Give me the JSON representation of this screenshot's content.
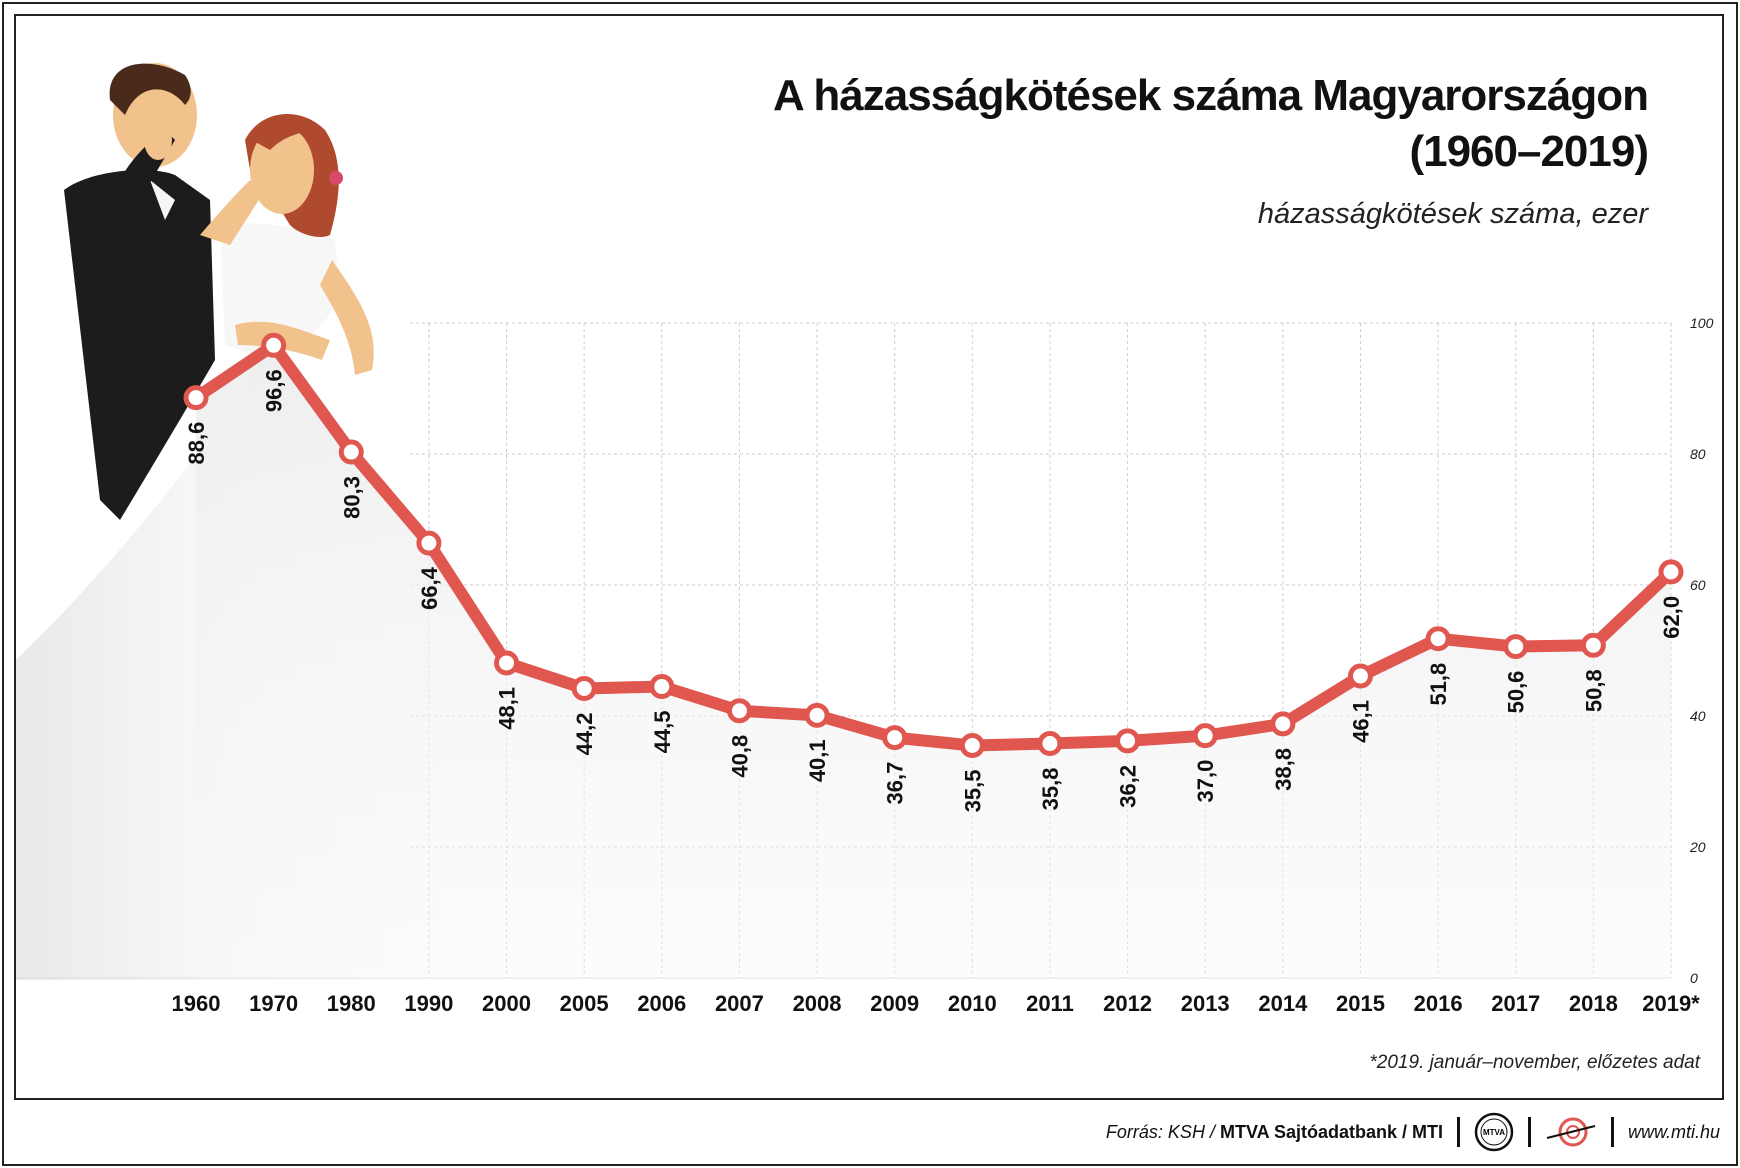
{
  "header": {
    "title_line1": "A házasságkötések száma Magyarországon",
    "title_line2": "(1960–2019)",
    "subtitle": "házasságkötések száma, ezer"
  },
  "footnote": "*2019. január–november, előzetes adat",
  "footer": {
    "source_prefix": "Forrás: KSH / ",
    "source_bold": "MTVA Sajtóadatbank / MTI",
    "website": "www.mti.hu",
    "mtva_logo_text": "MTVA"
  },
  "colors": {
    "line": "#e0574f",
    "marker_fill": "#ffffff",
    "grid": "#cccccc",
    "suit": "#1c1c1c",
    "skin": "#f2c28c",
    "hair_bride": "#b04a2e"
  },
  "decoration": {
    "image": "wedding-couple-illustration"
  },
  "chart_data": {
    "type": "line",
    "categories": [
      "1960",
      "1970",
      "1980",
      "1990",
      "2000",
      "2005",
      "2006",
      "2007",
      "2008",
      "2009",
      "2010",
      "2011",
      "2012",
      "2013",
      "2014",
      "2015",
      "2016",
      "2017",
      "2018",
      "2019*"
    ],
    "series": [
      {
        "values": [
          88.6,
          96.6,
          80.3,
          66.4,
          48.1,
          44.2,
          44.5,
          40.8,
          40.1,
          36.7,
          35.5,
          35.8,
          36.2,
          37.0,
          38.8,
          46.1,
          51.8,
          50.6,
          50.8,
          62.0
        ],
        "labels": [
          "88,6",
          "96,6",
          "80,3",
          "66,4",
          "48,1",
          "44,2",
          "44,5",
          "40,8",
          "40,1",
          "36,7",
          "35,5",
          "35,8",
          "36,2",
          "37,0",
          "38,8",
          "46,1",
          "51,8",
          "50,6",
          "50,8",
          "62,0"
        ]
      }
    ],
    "ylim": [
      0,
      100
    ],
    "y_ticks": [
      "0",
      "20",
      "40",
      "60",
      "80",
      "100"
    ],
    "y_axis_side": "right",
    "grid": true,
    "legend": "none"
  }
}
